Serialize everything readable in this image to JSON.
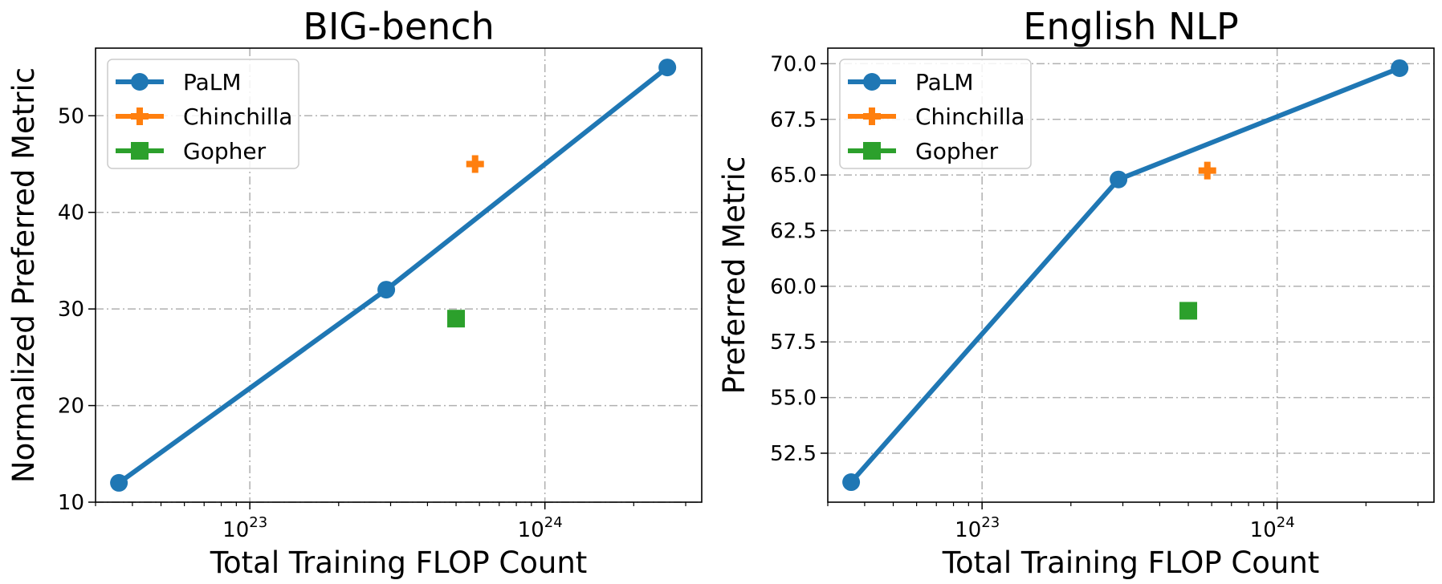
{
  "chart_data": [
    {
      "type": "line",
      "title": "BIG-bench",
      "xlabel": "Total Training FLOP Count",
      "ylabel": "Normalized Preferred Metric",
      "xscale": "log",
      "xlim": [
        3e+22,
        3.4e+24
      ],
      "ylim": [
        10,
        57
      ],
      "xticks": [
        {
          "value": 1e+23,
          "base": "10",
          "exp": "23"
        },
        {
          "value": 1e+24,
          "base": "10",
          "exp": "24"
        }
      ],
      "yticks": [
        {
          "value": 10,
          "label": "10"
        },
        {
          "value": 20,
          "label": "20"
        },
        {
          "value": 30,
          "label": "30"
        },
        {
          "value": 40,
          "label": "40"
        },
        {
          "value": 50,
          "label": "50"
        }
      ],
      "grid": true,
      "legend_position": "top-left",
      "series": [
        {
          "name": "PaLM",
          "color": "#1f77b4",
          "marker": "circle",
          "line": true,
          "points": [
            {
              "x": 3.6e+22,
              "y": 12
            },
            {
              "x": 2.9e+23,
              "y": 32
            },
            {
              "x": 2.6e+24,
              "y": 55
            }
          ]
        },
        {
          "name": "Chinchilla",
          "color": "#ff7f0e",
          "marker": "plus",
          "line": false,
          "points": [
            {
              "x": 5.8e+23,
              "y": 45
            }
          ]
        },
        {
          "name": "Gopher",
          "color": "#2ca02c",
          "marker": "square",
          "line": false,
          "points": [
            {
              "x": 5e+23,
              "y": 29
            }
          ]
        }
      ]
    },
    {
      "type": "line",
      "title": "English NLP",
      "xlabel": "Total Training FLOP Count",
      "ylabel": "Preferred Metric",
      "xscale": "log",
      "xlim": [
        3e+22,
        3.4e+24
      ],
      "ylim": [
        50.3,
        70.7
      ],
      "xticks": [
        {
          "value": 1e+23,
          "base": "10",
          "exp": "23"
        },
        {
          "value": 1e+24,
          "base": "10",
          "exp": "24"
        }
      ],
      "yticks": [
        {
          "value": 52.5,
          "label": "52.5"
        },
        {
          "value": 55,
          "label": "55.0"
        },
        {
          "value": 57.5,
          "label": "57.5"
        },
        {
          "value": 60,
          "label": "60.0"
        },
        {
          "value": 62.5,
          "label": "62.5"
        },
        {
          "value": 65,
          "label": "65.0"
        },
        {
          "value": 67.5,
          "label": "67.5"
        },
        {
          "value": 70,
          "label": "70.0"
        }
      ],
      "grid": true,
      "legend_position": "top-left",
      "series": [
        {
          "name": "PaLM",
          "color": "#1f77b4",
          "marker": "circle",
          "line": true,
          "points": [
            {
              "x": 3.6e+22,
              "y": 51.2
            },
            {
              "x": 2.9e+23,
              "y": 64.8
            },
            {
              "x": 2.6e+24,
              "y": 69.8
            }
          ]
        },
        {
          "name": "Chinchilla",
          "color": "#ff7f0e",
          "marker": "plus",
          "line": false,
          "points": [
            {
              "x": 5.8e+23,
              "y": 65.2
            }
          ]
        },
        {
          "name": "Gopher",
          "color": "#2ca02c",
          "marker": "square",
          "line": false,
          "points": [
            {
              "x": 5e+23,
              "y": 58.9
            }
          ]
        }
      ]
    }
  ]
}
